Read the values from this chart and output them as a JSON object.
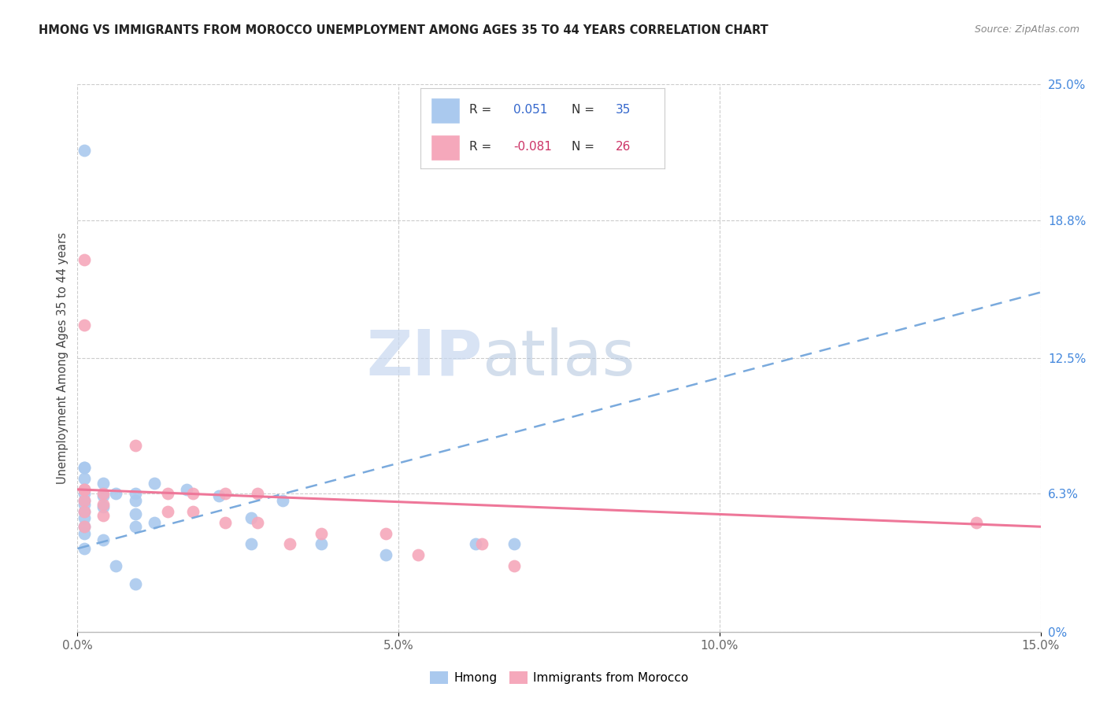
{
  "title": "HMONG VS IMMIGRANTS FROM MOROCCO UNEMPLOYMENT AMONG AGES 35 TO 44 YEARS CORRELATION CHART",
  "source": "Source: ZipAtlas.com",
  "ylabel": "Unemployment Among Ages 35 to 44 years",
  "xlim": [
    0,
    0.15
  ],
  "ylim": [
    0,
    0.25
  ],
  "xticks": [
    0.0,
    0.05,
    0.1,
    0.15
  ],
  "xtick_labels": [
    "0.0%",
    "5.0%",
    "10.0%",
    "15.0%"
  ],
  "ytick_labels_right": [
    "0%",
    "6.3%",
    "12.5%",
    "18.8%",
    "25.0%"
  ],
  "yticks_right": [
    0,
    0.063,
    0.125,
    0.188,
    0.25
  ],
  "r_hmong": 0.051,
  "n_hmong": 35,
  "r_morocco": -0.081,
  "n_morocco": 26,
  "hmong_color": "#aac9ee",
  "morocco_color": "#f5a8bb",
  "hmong_line_color": "#7aaadd",
  "morocco_line_color": "#ee7799",
  "watermark": "ZIPatlas",
  "watermark_zip_color": "#ccddf5",
  "watermark_atlas_color": "#aabbd8",
  "hmong_line_x0": 0.0,
  "hmong_line_y0": 0.038,
  "hmong_line_x1": 0.15,
  "hmong_line_y1": 0.155,
  "morocco_line_x0": 0.0,
  "morocco_line_y0": 0.065,
  "morocco_line_x1": 0.15,
  "morocco_line_y1": 0.048,
  "hmong_x": [
    0.001,
    0.001,
    0.001,
    0.001,
    0.001,
    0.001,
    0.001,
    0.001,
    0.001,
    0.001,
    0.001,
    0.001,
    0.004,
    0.004,
    0.004,
    0.004,
    0.006,
    0.006,
    0.009,
    0.009,
    0.009,
    0.009,
    0.009,
    0.012,
    0.012,
    0.017,
    0.022,
    0.027,
    0.027,
    0.032,
    0.038,
    0.048,
    0.062,
    0.068,
    0.001
  ],
  "hmong_y": [
    0.22,
    0.075,
    0.07,
    0.065,
    0.063,
    0.06,
    0.058,
    0.055,
    0.052,
    0.048,
    0.045,
    0.038,
    0.068,
    0.062,
    0.057,
    0.042,
    0.063,
    0.03,
    0.063,
    0.06,
    0.054,
    0.048,
    0.022,
    0.068,
    0.05,
    0.065,
    0.062,
    0.052,
    0.04,
    0.06,
    0.04,
    0.035,
    0.04,
    0.04,
    0.075
  ],
  "morocco_x": [
    0.001,
    0.001,
    0.001,
    0.001,
    0.001,
    0.001,
    0.004,
    0.004,
    0.004,
    0.009,
    0.014,
    0.014,
    0.018,
    0.018,
    0.023,
    0.023,
    0.028,
    0.028,
    0.033,
    0.038,
    0.048,
    0.053,
    0.063,
    0.068,
    0.14,
    0.001
  ],
  "morocco_y": [
    0.17,
    0.14,
    0.065,
    0.06,
    0.055,
    0.048,
    0.063,
    0.058,
    0.053,
    0.085,
    0.063,
    0.055,
    0.063,
    0.055,
    0.063,
    0.05,
    0.063,
    0.05,
    0.04,
    0.045,
    0.045,
    0.035,
    0.04,
    0.03,
    0.05,
    0.065
  ]
}
